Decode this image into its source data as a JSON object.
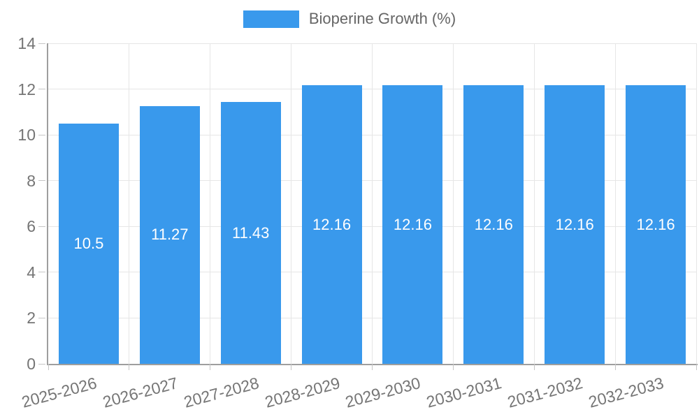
{
  "chart_data": {
    "type": "bar",
    "title": "",
    "legend": {
      "label": "Bioperine Growth (%)",
      "position": "top"
    },
    "categories": [
      "2025-2026",
      "2026-2027",
      "2027-2028",
      "2028-2029",
      "2029-2030",
      "2030-2031",
      "2031-2032",
      "2032-2033"
    ],
    "series": [
      {
        "name": "Bioperine Growth (%)",
        "values": [
          10.5,
          11.27,
          11.43,
          12.16,
          12.16,
          12.16,
          12.16,
          12.16
        ]
      }
    ],
    "value_labels": [
      "10.5",
      "11.27",
      "11.43",
      "12.16",
      "12.16",
      "12.16",
      "12.16",
      "12.16"
    ],
    "xlabel": "",
    "ylabel": "",
    "ylim": [
      0,
      14
    ],
    "yticks": [
      0,
      2,
      4,
      6,
      8,
      10,
      12,
      14
    ],
    "grid": true,
    "x_label_rotation_deg": -15,
    "colors": {
      "bar": "#3999EC",
      "axis": "#9E9E9E",
      "gridline": "#E6E6E6",
      "tick": "#C6C6C6",
      "axis_label": "#757575",
      "legend_text": "#666666",
      "bar_label": "#FFFFFF",
      "background": "#FFFFFF"
    }
  }
}
